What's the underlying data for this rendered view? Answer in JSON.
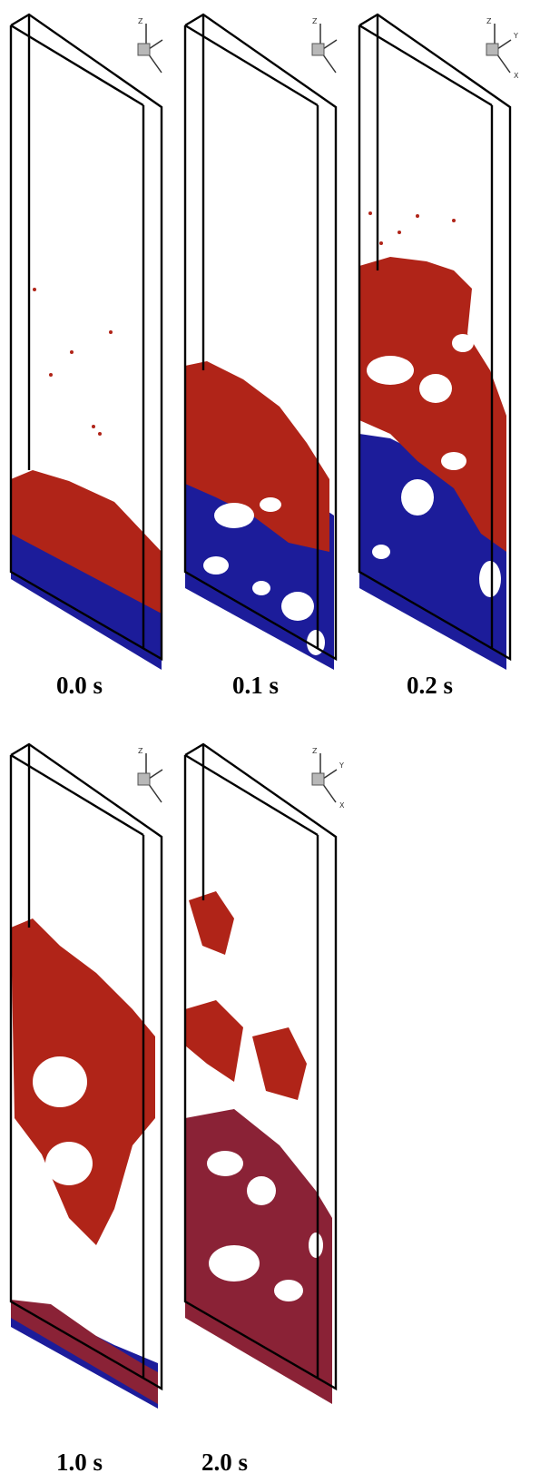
{
  "colors": {
    "background": "#ffffff",
    "particle_red": "#b02418",
    "particle_blue": "#1c1c9a",
    "box_edge": "#000000"
  },
  "panels": [
    {
      "caption": "0.0 s",
      "axis_labels": [
        "Z"
      ]
    },
    {
      "caption": "0.1 s",
      "axis_labels": [
        "Z"
      ]
    },
    {
      "caption": "0.2 s",
      "axis_labels": [
        "Z",
        "Y",
        "X"
      ]
    },
    {
      "caption": "1.0 s",
      "axis_labels": [
        "Z"
      ]
    },
    {
      "caption": "2.0 s",
      "axis_labels": [
        "Z",
        "Y",
        "X"
      ]
    }
  ]
}
